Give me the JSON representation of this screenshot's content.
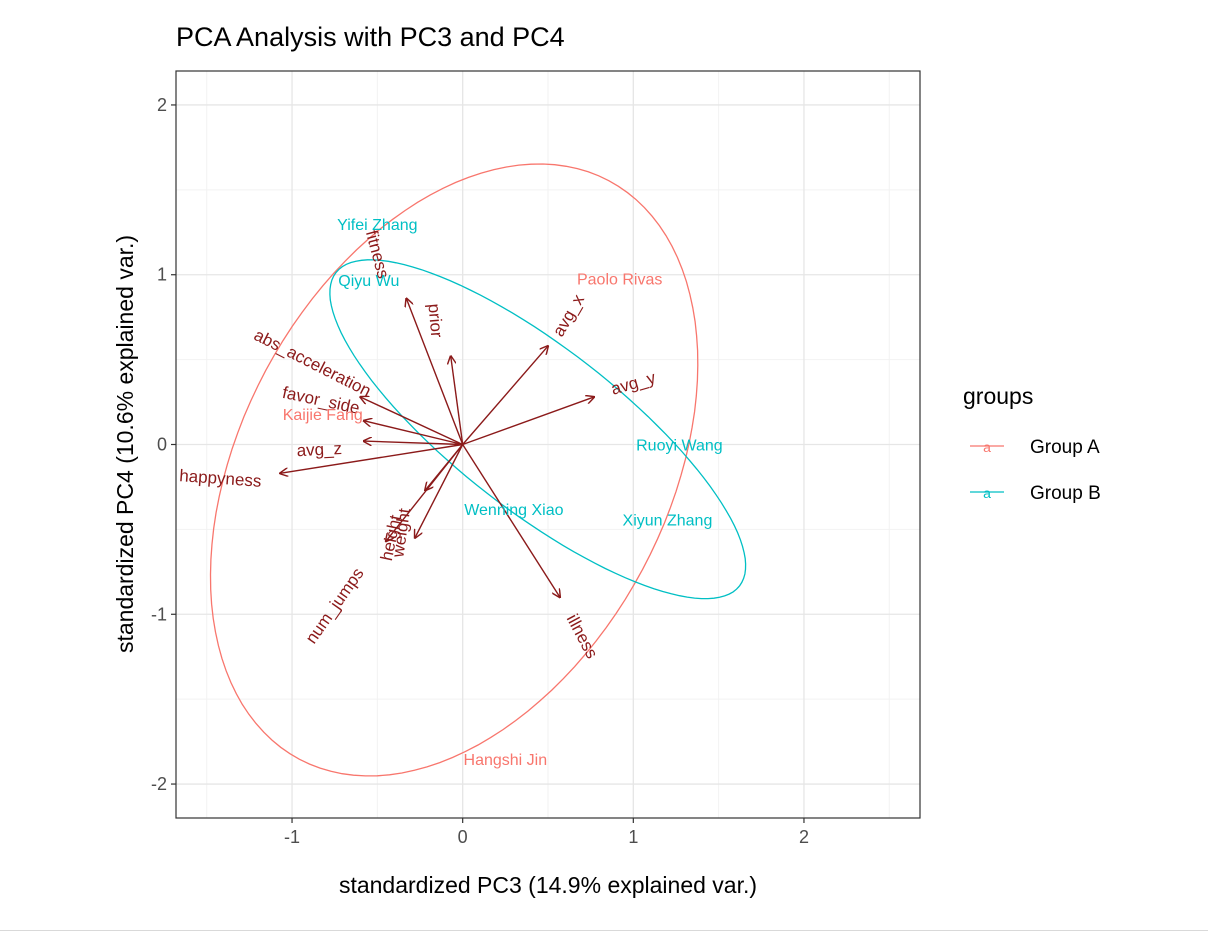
{
  "chart_data": {
    "type": "scatter",
    "subtype": "pca-biplot",
    "title": "PCA Analysis with PC3 and PC4",
    "xlabel": "standardized PC3 (14.9% explained var.)",
    "ylabel": "standardized PC4 (10.6% explained var.)",
    "xlim": [
      -1.68,
      2.68
    ],
    "ylim": [
      -2.2,
      2.2
    ],
    "xticks": [
      -1,
      0,
      1,
      2
    ],
    "yticks": [
      -2,
      -1,
      0,
      1,
      2
    ],
    "grid": true,
    "legend": {
      "title": "groups",
      "position": "right",
      "items": [
        {
          "label": "Group A",
          "color": "#F8766D",
          "key_glyph": "a"
        },
        {
          "label": "Group B",
          "color": "#00BFC4",
          "key_glyph": "a"
        }
      ]
    },
    "series": [
      {
        "name": "Group A",
        "color": "#F8766D",
        "points": [
          {
            "label": "Paolo Rivas",
            "x": 0.92,
            "y": 0.97
          },
          {
            "label": "Kaijie Fang",
            "x": -0.82,
            "y": 0.17
          },
          {
            "label": "Hangshi Jin",
            "x": 0.25,
            "y": -1.86
          }
        ],
        "ellipse": {
          "cx": -0.05,
          "cy": -0.15,
          "rx": 1.25,
          "ry": 1.93,
          "angle_deg": -28
        }
      },
      {
        "name": "Group B",
        "color": "#00BFC4",
        "points": [
          {
            "label": "Yifei Zhang",
            "x": -0.5,
            "y": 1.29
          },
          {
            "label": "Qiyu Wu",
            "x": -0.55,
            "y": 0.96
          },
          {
            "label": "Ruoyi Wang",
            "x": 1.27,
            "y": -0.01
          },
          {
            "label": "Wenning Xiao",
            "x": 0.3,
            "y": -0.39
          },
          {
            "label": "Xiyun Zhang",
            "x": 1.2,
            "y": -0.45
          }
        ],
        "ellipse": {
          "cx": 0.44,
          "cy": 0.09,
          "rx": 1.5,
          "ry": 0.48,
          "angle_deg": -38
        }
      }
    ],
    "arrow_color": "#8B1A1A",
    "arrows": [
      {
        "label": "fitness",
        "x": -0.33,
        "y": 0.86,
        "lx": -0.5,
        "ly": 1.12,
        "angle": 75
      },
      {
        "label": "prior",
        "x": -0.07,
        "y": 0.52,
        "lx": -0.16,
        "ly": 0.73,
        "angle": 85
      },
      {
        "label": "avg_x",
        "x": 0.5,
        "y": 0.58,
        "lx": 0.62,
        "ly": 0.76,
        "angle": -60
      },
      {
        "label": "avg_y",
        "x": 0.77,
        "y": 0.28,
        "lx": 1.0,
        "ly": 0.36,
        "angle": -16
      },
      {
        "label": "abs_acceleration",
        "x": -0.6,
        "y": 0.28,
        "lx": -0.88,
        "ly": 0.48,
        "angle": 27
      },
      {
        "label": "favor_side",
        "x": -0.58,
        "y": 0.14,
        "lx": -0.83,
        "ly": 0.26,
        "angle": 12
      },
      {
        "label": "avg_z",
        "x": -0.58,
        "y": 0.02,
        "lx": -0.84,
        "ly": -0.03,
        "angle": -3
      },
      {
        "label": "happyness",
        "x": -1.07,
        "y": -0.17,
        "lx": -1.42,
        "ly": -0.2,
        "angle": 4
      },
      {
        "label": "weight",
        "x": -0.22,
        "y": -0.27,
        "lx": -0.36,
        "ly": -0.52,
        "angle": -82
      },
      {
        "label": "height",
        "x": -0.28,
        "y": -0.55,
        "lx": -0.42,
        "ly": -0.55,
        "angle": -78
      },
      {
        "label": "num_jumps",
        "x": -0.45,
        "y": -0.57,
        "lx": -0.75,
        "ly": -0.95,
        "angle": -55
      },
      {
        "label": "illness",
        "x": 0.57,
        "y": -0.9,
        "lx": 0.7,
        "ly": -1.13,
        "angle": 62
      }
    ]
  }
}
